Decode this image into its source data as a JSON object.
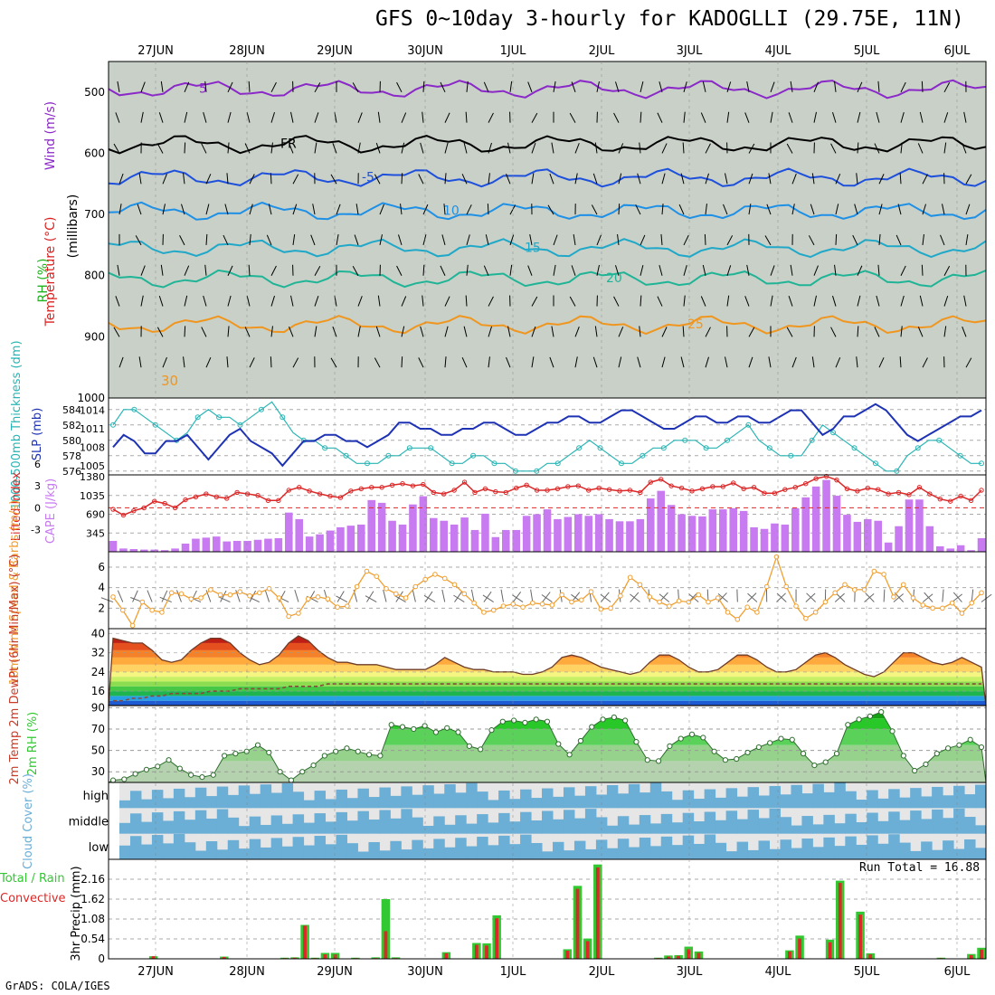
{
  "title": "GFS 0~10day 3-hourly for KADOGLLI (29.75E, 11N)",
  "footer": "GrADS: COLA/IGES",
  "colors": {
    "rh_dark": "#1eb41e",
    "rh_mid": "#6fd46f",
    "rh_light": "#a8d8a0",
    "rh_grey": "#c8d0c8",
    "temp_purple": "#8b28c8",
    "temp_blue": "#1e50dc",
    "temp_cyan": "#20a8c8",
    "temp_orange": "#f0961e",
    "temp_red": "#dc2020",
    "slp": "#1e32b4",
    "thickness": "#28b4b4",
    "cape": "#c87af0",
    "li": "#dc2828",
    "wind": "#f0a032",
    "rh2m": "#32c832",
    "cloud": "#6baed6",
    "precip_total": "#32c832",
    "precip_conv": "#dc2828"
  },
  "chart_data": [
    {
      "type": "heatmap",
      "panel": "cross-section",
      "x": [
        "27JUN",
        "28JUN",
        "29JUN",
        "30JUN",
        "1JUL",
        "2JUL",
        "3JUL",
        "4JUL",
        "5JUL",
        "6JUL"
      ],
      "ylabel": "(millibars)",
      "yticks": [
        500,
        600,
        700,
        800,
        900,
        1000
      ],
      "ylim": [
        1000,
        450
      ],
      "legend": [
        "Wind (m/s)",
        "Temperature (°C)",
        "RH (%)"
      ],
      "contour_labels": [
        "5",
        "FR",
        "-5",
        "10",
        "15",
        "20",
        "25",
        "30"
      ]
    },
    {
      "type": "line",
      "panel": "thickness-slp",
      "ylabel_left": "1000-500mb Thickness (dm)",
      "ylabel_right": "SLP (mb)",
      "yticks_left": [
        576,
        578,
        580,
        582,
        584
      ],
      "yticks_right": [
        1005,
        1008,
        1011,
        1014
      ],
      "series": [
        {
          "name": "Thickness",
          "values": [
            582,
            584,
            584,
            583,
            582,
            581,
            580,
            581,
            583,
            584,
            583,
            583,
            582,
            583,
            584,
            585,
            583,
            581,
            580,
            580,
            579,
            579,
            578,
            577,
            577,
            577,
            578,
            578,
            579,
            579,
            579,
            578,
            577,
            577,
            578,
            578,
            577,
            577,
            576,
            576,
            576,
            577,
            577,
            578,
            579,
            580,
            579,
            578,
            577,
            577,
            578,
            579,
            579,
            580,
            580,
            580,
            579,
            579,
            580,
            581,
            582,
            580,
            579,
            578,
            578,
            578,
            580,
            582,
            581,
            580,
            579,
            578,
            577,
            576,
            576,
            578,
            579,
            580,
            580,
            579,
            578,
            577,
            577
          ]
        },
        {
          "name": "SLP",
          "values": [
            1008,
            1010,
            1009,
            1007,
            1007,
            1009,
            1009,
            1010,
            1008,
            1006,
            1008,
            1010,
            1011,
            1009,
            1008,
            1007,
            1005,
            1007,
            1009,
            1009,
            1010,
            1010,
            1009,
            1009,
            1008,
            1009,
            1010,
            1012,
            1012,
            1011,
            1011,
            1010,
            1010,
            1011,
            1011,
            1012,
            1012,
            1011,
            1010,
            1010,
            1011,
            1012,
            1012,
            1013,
            1013,
            1012,
            1012,
            1013,
            1014,
            1014,
            1013,
            1012,
            1011,
            1011,
            1012,
            1013,
            1013,
            1012,
            1012,
            1013,
            1013,
            1012,
            1012,
            1013,
            1014,
            1014,
            1012,
            1010,
            1011,
            1013,
            1013,
            1014,
            1015,
            1014,
            1012,
            1010,
            1009,
            1010,
            1011,
            1012,
            1013,
            1013,
            1014
          ]
        }
      ]
    },
    {
      "type": "bar",
      "panel": "cape-li",
      "ylabel_left": "Lifted Index",
      "ylabel_right": "CAPE (J/kg)",
      "yticks_left": [
        "-3",
        "0",
        "3",
        "6"
      ],
      "yticks_right": [
        "345",
        "690",
        "1035",
        "1380"
      ],
      "series": [
        {
          "name": "CAPE",
          "values": [
            200,
            60,
            50,
            40,
            40,
            30,
            60,
            150,
            240,
            260,
            280,
            190,
            200,
            200,
            220,
            240,
            250,
            720,
            600,
            280,
            320,
            390,
            450,
            480,
            500,
            950,
            900,
            570,
            500,
            870,
            1020,
            620,
            570,
            500,
            630,
            400,
            700,
            270,
            400,
            400,
            660,
            690,
            780,
            600,
            640,
            690,
            660,
            690,
            600,
            560,
            560,
            600,
            980,
            1120,
            860,
            690,
            660,
            650,
            780,
            780,
            800,
            750,
            450,
            420,
            520,
            500,
            800,
            1000,
            1200,
            1320,
            1030,
            680,
            550,
            600,
            570,
            170,
            470,
            960,
            960,
            470,
            100,
            60,
            120,
            30,
            250
          ]
        },
        {
          "name": "Lifted Index",
          "values": [
            0.2,
            1.0,
            0.4,
            0.0,
            -0.9,
            -0.6,
            0.0,
            -1.1,
            -1.5,
            -1.9,
            -1.5,
            -1.3,
            -2.1,
            -1.9,
            -1.7,
            -1.0,
            -1.0,
            -2.4,
            -2.8,
            -2.3,
            -1.9,
            -1.6,
            -1.4,
            -2.3,
            -2.6,
            -2.8,
            -2.8,
            -3.1,
            -3.3,
            -3.0,
            -3.2,
            -2.1,
            -1.9,
            -2.4,
            -3.5,
            -2.1,
            -2.6,
            -2.2,
            -2.1,
            -2.7,
            -3.1,
            -2.4,
            -2.4,
            -2.6,
            -2.9,
            -3.0,
            -2.4,
            -2.7,
            -2.5,
            -2.3,
            -2.4,
            -2.1,
            -3.5,
            -3.9,
            -3.0,
            -2.7,
            -2.3,
            -2.6,
            -2.9,
            -2.9,
            -3.4,
            -2.6,
            -2.8,
            -2.0,
            -2.0,
            -2.5,
            -2.8,
            -3.3,
            -4.0,
            -4.3,
            -3.8,
            -2.6,
            -2.3,
            -2.7,
            -2.5,
            -1.9,
            -2.1,
            -1.8,
            -2.8,
            -1.9,
            -1.2,
            -0.9,
            -1.6,
            -1.0,
            -2.4
          ]
        }
      ]
    },
    {
      "type": "line",
      "panel": "wind10m",
      "ylabel": "10m Wind Speed & Barbs (m/s)",
      "yticks": [
        2,
        4,
        6
      ],
      "ylim": [
        0,
        7.5
      ],
      "series": [
        {
          "name": "10m Wind Speed",
          "values": [
            3.1,
            1.8,
            0.3,
            2.6,
            1.8,
            1.6,
            3.5,
            3.4,
            2.9,
            3.0,
            3.8,
            3.3,
            3.3,
            3.6,
            3.2,
            3.5,
            3.9,
            3.0,
            1.2,
            1.5,
            2.9,
            3.1,
            2.9,
            2.1,
            2.2,
            4.1,
            5.6,
            5.1,
            3.9,
            3.4,
            3.0,
            4.1,
            4.8,
            5.3,
            4.9,
            4.3,
            3.4,
            2.5,
            1.6,
            1.8,
            2.2,
            2.4,
            2.1,
            2.5,
            2.4,
            2.3,
            3.3,
            2.6,
            2.8,
            3.6,
            1.9,
            2.0,
            3.2,
            5.0,
            4.3,
            3.1,
            2.6,
            2.2,
            2.7,
            2.6,
            3.3,
            2.6,
            3.0,
            1.6,
            0.9,
            2.1,
            1.6,
            4.1,
            7.0,
            4.1,
            2.2,
            1.0,
            1.6,
            2.6,
            3.5,
            4.3,
            3.8,
            3.8,
            5.6,
            5.3,
            3.1,
            4.3,
            3.0,
            2.3,
            2.0,
            2.0,
            2.5,
            1.5,
            2.5,
            3.5
          ]
        }
      ]
    },
    {
      "type": "area",
      "panel": "temp2m",
      "ylabel": "2m Temp 2m DewPt (6hr Min/Max) (°C)",
      "yticks": [
        16,
        24,
        32,
        40
      ],
      "ylim": [
        10,
        42
      ],
      "series": [
        {
          "name": "2m Temp",
          "values": [
            38,
            37,
            36,
            36,
            33,
            29,
            28,
            29,
            33,
            36,
            38,
            38,
            36,
            32,
            29,
            27,
            28,
            31,
            36,
            39,
            37,
            33,
            30,
            28,
            28,
            27,
            27,
            27,
            26,
            25,
            25,
            25,
            25,
            27,
            30,
            28,
            26,
            25,
            25,
            24,
            24,
            24,
            23,
            23,
            24,
            26,
            30,
            31,
            30,
            28,
            26,
            25,
            24,
            23,
            24,
            28,
            31,
            31,
            29,
            26,
            24,
            24,
            25,
            28,
            31,
            31,
            29,
            26,
            24,
            24,
            25,
            28,
            31,
            32,
            30,
            27,
            25,
            23,
            22,
            24,
            28,
            32,
            32,
            30,
            28,
            27,
            28,
            30,
            28,
            26
          ]
        },
        {
          "name": "2m DewPt",
          "values": [
            12,
            12,
            13,
            13,
            14,
            14,
            15,
            15,
            15,
            15,
            16,
            16,
            16,
            17,
            17,
            17,
            17,
            17,
            18,
            18,
            18,
            18,
            19,
            19,
            19,
            19,
            19,
            19,
            19,
            19,
            19,
            19,
            19,
            19,
            19,
            19,
            19,
            19,
            19,
            19,
            19,
            19,
            19,
            19,
            19,
            19,
            19,
            19,
            19,
            19,
            19,
            19,
            19,
            19,
            19,
            19,
            19,
            19,
            19,
            19,
            19,
            19,
            19,
            19,
            19,
            19,
            19,
            19,
            19,
            19,
            19,
            19,
            19,
            19,
            19,
            19,
            19,
            19,
            19,
            19,
            19,
            19,
            19,
            19,
            19,
            19,
            19,
            19,
            19,
            19
          ]
        }
      ]
    },
    {
      "type": "area",
      "panel": "rh2m",
      "ylabel": "2m RH (%)",
      "yticks": [
        30,
        50,
        70,
        90
      ],
      "ylim": [
        20,
        92
      ],
      "series": [
        {
          "name": "2m RH",
          "values": [
            22,
            23,
            28,
            32,
            35,
            41,
            33,
            27,
            25,
            27,
            45,
            47,
            49,
            55,
            48,
            30,
            22,
            30,
            36,
            45,
            49,
            52,
            49,
            46,
            45,
            74,
            72,
            70,
            73,
            67,
            71,
            67,
            54,
            51,
            69,
            77,
            78,
            76,
            79,
            77,
            56,
            46,
            59,
            72,
            79,
            81,
            78,
            58,
            41,
            40,
            54,
            61,
            65,
            62,
            49,
            41,
            42,
            48,
            53,
            57,
            61,
            60,
            47,
            36,
            39,
            47,
            74,
            79,
            82,
            86,
            68,
            45,
            31,
            37,
            47,
            52,
            55,
            60,
            53
          ]
        }
      ]
    },
    {
      "type": "heatmap",
      "panel": "cloud",
      "ylabel": "Cloud Cover (%)",
      "rows": [
        "high",
        "middle",
        "low"
      ]
    },
    {
      "type": "bar",
      "panel": "precip",
      "ylabel": "3hr Precip (mm)",
      "legend": [
        "Total / Rain",
        "Convective"
      ],
      "yticks": [
        "0",
        "0.54",
        "1.08",
        "1.62",
        "2.16"
      ],
      "ylim": [
        0,
        2.7
      ],
      "run_total": "Run Total = 16.88",
      "series": [
        {
          "name": "Total / Rain",
          "values": [
            0,
            0,
            0,
            0,
            0.07,
            0,
            0,
            0,
            0,
            0,
            0,
            0.06,
            0,
            0,
            0,
            0,
            0,
            0.03,
            0.04,
            0.92,
            0.03,
            0.16,
            0.16,
            0,
            0.03,
            0,
            0.04,
            1.62,
            0.04,
            0,
            0,
            0,
            0,
            0.18,
            0,
            0,
            0.43,
            0.42,
            1.18,
            0,
            0,
            0,
            0,
            0,
            0,
            0.26,
            1.98,
            0.55,
            2.56,
            0,
            0,
            0,
            0,
            0,
            0.03,
            0.09,
            0.1,
            0.33,
            0.2,
            0,
            0,
            0,
            0,
            0,
            0,
            0,
            0.01,
            0.23,
            0.63,
            0,
            0,
            0.52,
            2.12,
            0,
            1.28,
            0.15,
            0,
            0,
            0,
            0,
            0,
            0,
            0.03,
            0,
            0,
            0.13,
            0.3
          ]
        },
        {
          "name": "Convective",
          "values": [
            0,
            0,
            0,
            0,
            0.07,
            0,
            0,
            0,
            0,
            0,
            0,
            0.05,
            0,
            0,
            0,
            0,
            0,
            0.02,
            0.03,
            0.9,
            0.02,
            0.12,
            0.12,
            0,
            0.02,
            0,
            0.02,
            0.75,
            0.02,
            0,
            0,
            0,
            0,
            0.15,
            0,
            0,
            0.38,
            0.36,
            1.1,
            0,
            0,
            0,
            0,
            0,
            0,
            0.22,
            1.9,
            0.48,
            2.48,
            0,
            0,
            0,
            0,
            0,
            0.02,
            0.06,
            0.08,
            0.26,
            0.16,
            0,
            0,
            0,
            0,
            0,
            0,
            0,
            0.01,
            0.2,
            0.55,
            0,
            0,
            0.45,
            2.06,
            0,
            1.2,
            0.12,
            0,
            0,
            0,
            0,
            0,
            0,
            0.02,
            0,
            0,
            0.1,
            0.25
          ]
        }
      ]
    }
  ]
}
